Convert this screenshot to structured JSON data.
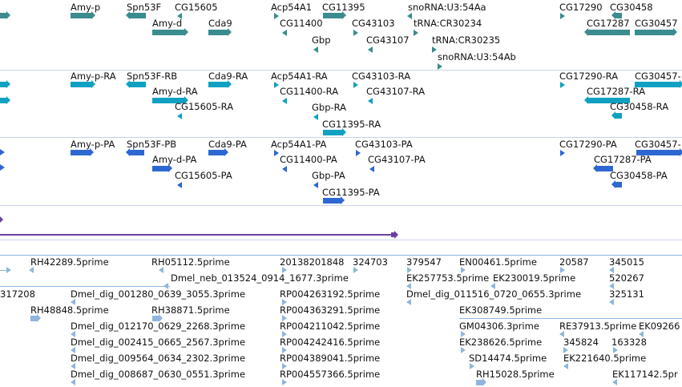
{
  "genes": {
    "amy_p": "Amy-p",
    "spn53f": "Spn53F",
    "cg15605": "CG15605",
    "acp54a1": "Acp54A1",
    "cg11395": "CG11395",
    "snorna_aa": "snoRNA:U3:54Aa",
    "cg17290": "CG17290",
    "cg30458": "CG30458",
    "amy_d": "Amy-d",
    "cda9": "Cda9",
    "cg11400": "CG11400",
    "cg43103": "CG43103",
    "trna": "tRNA:CR30234",
    "cg17287": "CG17287",
    "cg30457": "CG30457",
    "gbp": "Gbp",
    "cg43107": "CG43107",
    "trna2": "tRNA:CR30235",
    "snorna_ab": "snoRNA:U3:54Ab"
  },
  "transcripts": {
    "amy_p": "Amy-p-RA",
    "spn53f": "Spn53F-RB",
    "cda9": "Cda9-RA",
    "acp54a1": "Acp54A1-RA",
    "cg43103": "CG43103-RA",
    "cg17290": "CG17290-RA",
    "cg30457": "CG30457-",
    "amy_d": "Amy-d-RA",
    "cg11400": "CG11400-RA",
    "cg43107": "CG43107-RA",
    "cg17287": "CG17287-RA",
    "cg15605": "CG15605-RA",
    "cg30458": "CG30458-RA",
    "gbp": "Gbp-RA",
    "cg11395": "CG11395-RA"
  },
  "proteins": {
    "amy_p": "Amy-p-PA",
    "spn53f": "Spn53F-PB",
    "cda9": "Cda9-PA",
    "acp54a1": "Acp54A1-PA",
    "cg43103": "CG43103-PA",
    "cg17290": "CG17290-PA",
    "cg30457": "CG30457-",
    "amy_d": "Amy-d-PA",
    "cg11400": "CG11400-PA",
    "cg43107": "CG43107-PA",
    "cg17287": "CG17287-PA",
    "cg15605": "CG15605-PA",
    "cg30458": "CG30458-PA",
    "gbp": "Gbp-PA",
    "cg11395": "CG11395-PA"
  },
  "ests": {
    "r1": [
      "RH42289.5prime",
      "RH05112.5prime",
      "20138201848",
      "324703",
      "379547",
      "EN00461.5prime",
      "20587",
      "345015"
    ],
    "r2": [
      "Dmel_neb_013524_0914_1677.3prime",
      "EK257753.5prime",
      "EK230019.5prime",
      "520267"
    ],
    "r3": [
      "317208",
      "Dmel_dig_001280_0639_3055.3prime",
      "RP004263192.5prime",
      "Dmel_dig_011516_0720_0655.3prime",
      "325131"
    ],
    "r4": [
      "RH48848.5prime",
      "RH38871.5prime",
      "RP004363291.5prime",
      "EK308749.5prime"
    ],
    "r5": [
      "Dmel_dig_012170_0629_2268.3prime",
      "RP004211042.5prime",
      "GM04306.3prime",
      "RE37913.5prime",
      "EK09266"
    ],
    "r6": [
      "Dmel_dig_002415_0665_2567.3prime",
      "RP004242416.5prime",
      "EK238626.5prime",
      "345824",
      "163328"
    ],
    "r7": [
      "Dmel_dig_009564_0634_2302.3prime",
      "RP004389041.5prime",
      "SD14474.5prime",
      "EK221640.5prime"
    ],
    "r8": [
      "Dmel_dig_008687_0630_0551.3prime",
      "RP004557366.5prime",
      "RH15028.5prime",
      "EK117142.5pr"
    ]
  },
  "colors": {
    "gene": "#3a8c8e",
    "transcript": "#10a1c2",
    "protein": "#2d67d1",
    "est": "#8fb5df",
    "scroll": "#6a3fa3",
    "divider": "#c9d3e6"
  }
}
